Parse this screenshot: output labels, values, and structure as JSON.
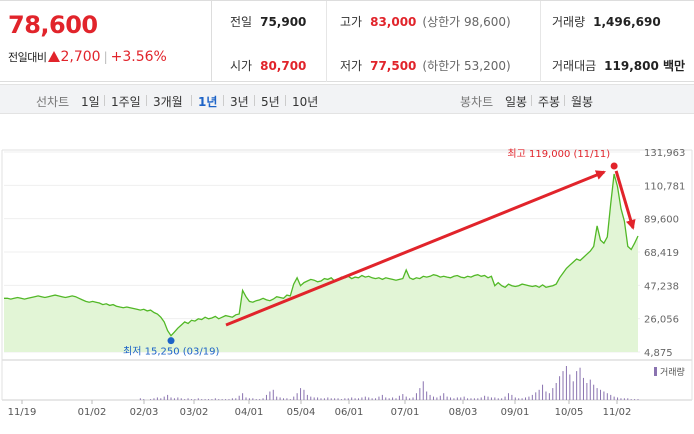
{
  "quote": {
    "price": "78,600",
    "change_label": "전일대비",
    "change_amount": "2,700",
    "change_pct": "+3.56%",
    "prev_close": {
      "label": "전일",
      "value": "75,900"
    },
    "high": {
      "label": "고가",
      "value": "83,000",
      "sub": "(상한가 98,600)"
    },
    "volume": {
      "label": "거래량",
      "value": "1,496,690"
    },
    "open": {
      "label": "시가",
      "value": "80,700"
    },
    "low": {
      "label": "저가",
      "value": "77,500",
      "sub": "(하한가 53,200)"
    },
    "turnover": {
      "label": "거래대금",
      "value": "119,800 백만"
    }
  },
  "toolbar": {
    "line_label": "선차트",
    "ranges": [
      "1일",
      "1주일",
      "3개월",
      "1년",
      "3년",
      "5년",
      "10년"
    ],
    "active_range": "1년",
    "candle_label": "봉차트",
    "candles": [
      "일봉",
      "주봉",
      "월봉"
    ]
  },
  "colors": {
    "up": "#e1242b",
    "accent": "#1d63c7",
    "line": "#52b827",
    "area": "#e2f5d6",
    "volume": "#8a73b0"
  },
  "chart_data": {
    "type": "area",
    "yticks": [
      131963,
      110781,
      89600,
      68419,
      47238,
      26056,
      4875
    ],
    "ylim": [
      4875,
      131963
    ],
    "xticks": [
      "11/19",
      "01/02",
      "02/03",
      "03/02",
      "04/01",
      "05/04",
      "06/01",
      "07/01",
      "08/03",
      "09/01",
      "10/05",
      "11/02"
    ],
    "annotations": {
      "high": {
        "text": "최고 119,000 (11/11)",
        "date": "11/11",
        "value": 119000
      },
      "low": {
        "text": "최저 15,250 (03/19)",
        "date": "03/19",
        "value": 15250
      }
    },
    "volume_label": "거래량",
    "series": [
      {
        "values": [
          39000,
          39000,
          38500,
          39000,
          39500,
          39000,
          38500,
          39000,
          39500,
          40000,
          40500,
          40000,
          39500,
          40000,
          40500,
          41000,
          40500,
          40000,
          39500,
          40000,
          40500,
          40000,
          39000,
          38000,
          37000,
          36500,
          37000,
          36500,
          36000,
          35000,
          35500,
          34500,
          35000,
          34000,
          33500,
          33000,
          33500,
          33000,
          32500,
          32000,
          31500,
          32000,
          31000,
          31500,
          30000,
          29000,
          27000,
          24000,
          18500,
          15250,
          17500,
          20000,
          22000,
          24000,
          23000,
          25000,
          24500,
          26000,
          25500,
          27000,
          26000,
          26500,
          27500,
          26000,
          27000,
          28000,
          27500,
          27000,
          28500,
          29000,
          44000,
          40000,
          37000,
          36500,
          37500,
          38000,
          39000,
          38000,
          37500,
          38500,
          40000,
          39500,
          39000,
          41000,
          40500,
          48000,
          52000,
          47000,
          49000,
          50000,
          51000,
          50500,
          49500,
          50000,
          51500,
          51000,
          52000,
          50000,
          51000,
          52500,
          52000,
          53000,
          51500,
          52500,
          52000,
          53500,
          52500,
          53000,
          52000,
          51500,
          52000,
          51000,
          52000,
          51500,
          51000,
          50500,
          51000,
          51500,
          57000,
          52000,
          51000,
          52000,
          51500,
          53000,
          52500,
          53000,
          54000,
          53500,
          52500,
          53000,
          52500,
          52000,
          53000,
          53500,
          52500,
          52000,
          53000,
          52500,
          53500,
          54000,
          53000,
          53500,
          52000,
          53000,
          47000,
          49000,
          47000,
          46000,
          48000,
          47000,
          46500,
          47000,
          48000,
          47500,
          47000,
          46500,
          47000,
          46000,
          47500,
          46000,
          46500,
          47000,
          48000,
          52000,
          55000,
          58000,
          60000,
          62000,
          64000,
          63000,
          65000,
          67000,
          69000,
          72000,
          85000,
          76000,
          74000,
          78000,
          99000,
          118000,
          110000,
          96000,
          88000,
          72000,
          70000,
          74000,
          78600
        ]
      },
      {
        "values": [
          0,
          0,
          0,
          0,
          0,
          0,
          0,
          0,
          0,
          0,
          0,
          0,
          0,
          0,
          0,
          0,
          0,
          0,
          0,
          0,
          0,
          0,
          0,
          0,
          0,
          0,
          0,
          0,
          0,
          0,
          0,
          0,
          0,
          0,
          0,
          0,
          0,
          0,
          0,
          0,
          2,
          1,
          0,
          1,
          2,
          3,
          2,
          4,
          6,
          3,
          2,
          3,
          2,
          1,
          2,
          1,
          1,
          2,
          1,
          1,
          1,
          1,
          2,
          1,
          1,
          1,
          1,
          2,
          2,
          5,
          8,
          3,
          2,
          2,
          1,
          1,
          2,
          6,
          10,
          12,
          4,
          3,
          2,
          2,
          1,
          4,
          8,
          14,
          12,
          6,
          4,
          3,
          3,
          2,
          2,
          3,
          2,
          2,
          2,
          1,
          2,
          2,
          3,
          2,
          2,
          3,
          4,
          3,
          2,
          2,
          4,
          6,
          3,
          2,
          3,
          2,
          5,
          7,
          4,
          2,
          3,
          8,
          14,
          22,
          10,
          6,
          4,
          3,
          5,
          8,
          4,
          3,
          2,
          3,
          3,
          4,
          2,
          2,
          2,
          2,
          3,
          5,
          4,
          3,
          3,
          2,
          2,
          4,
          8,
          6,
          3,
          2,
          2,
          3,
          4,
          6,
          9,
          12,
          18,
          10,
          8,
          14,
          20,
          28,
          34,
          40,
          30,
          22,
          34,
          38,
          26,
          20,
          24,
          18,
          14,
          12,
          10,
          8,
          6,
          4,
          3,
          2,
          2,
          2,
          1,
          1,
          1
        ]
      }
    ]
  }
}
